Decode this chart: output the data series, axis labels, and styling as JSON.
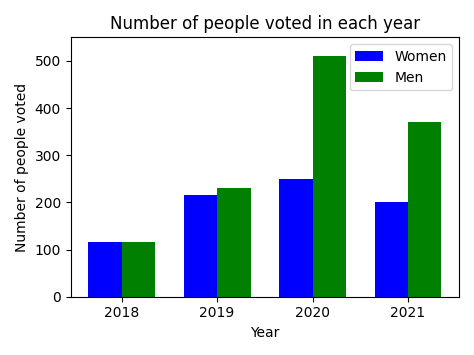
{
  "title": "Number of people voted in each year",
  "xlabel": "Year",
  "ylabel": "Number of people voted",
  "years": [
    2018,
    2019,
    2020,
    2021
  ],
  "women": [
    115,
    215,
    250,
    200
  ],
  "men": [
    115,
    230,
    510,
    370
  ],
  "women_color": "#0000ff",
  "men_color": "#008000",
  "bar_width": 0.35,
  "ylim": [
    0,
    550
  ],
  "legend_labels": [
    "Women",
    "Men"
  ],
  "title_fontsize": 12,
  "label_fontsize": 10,
  "tick_fontsize": 10,
  "legend_fontsize": 10,
  "figure_width": 4.74,
  "figure_height": 3.55,
  "dpi": 100
}
